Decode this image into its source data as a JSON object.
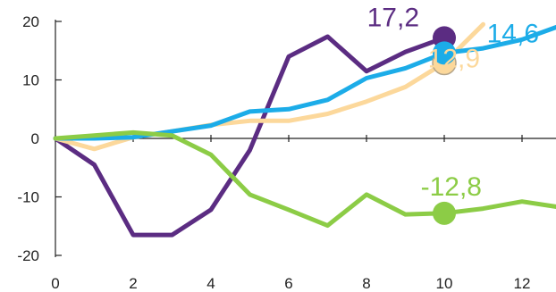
{
  "chart_data": {
    "type": "line",
    "title": "",
    "xlabel": "",
    "ylabel": "",
    "xlim": [
      0,
      13
    ],
    "ylim": [
      -20,
      20
    ],
    "x_ticks": [
      0,
      2,
      4,
      6,
      8,
      10,
      12
    ],
    "y_ticks": [
      -20,
      -10,
      0,
      10,
      20
    ],
    "grid": false,
    "series": [
      {
        "color": "#5b2c82",
        "x": [
          0,
          1,
          2,
          3,
          4,
          5,
          6,
          7,
          8,
          9,
          10
        ],
        "y": [
          0,
          -4.5,
          -16.5,
          -16.5,
          -12.2,
          -2,
          14,
          17.4,
          11.5,
          14.8,
          17.2
        ],
        "end_label": "17,2",
        "end_point": {
          "x": 10,
          "y": 17.2
        }
      },
      {
        "color": "#fcd89b",
        "x": [
          0,
          1,
          2,
          3,
          4,
          5,
          6,
          7,
          8,
          9,
          10,
          11
        ],
        "y": [
          0,
          -1.8,
          0.2,
          1.2,
          2.3,
          3,
          3,
          4.2,
          6.3,
          8.8,
          12.9,
          19.5
        ],
        "end_label": "12,9",
        "end_point": {
          "x": 10,
          "y": 12.9
        }
      },
      {
        "color": "#1cace8",
        "x": [
          0,
          1,
          2,
          3,
          4,
          5,
          6,
          7,
          8,
          9,
          10,
          11,
          12,
          13
        ],
        "y": [
          0,
          0,
          0.2,
          1.2,
          2.2,
          4.6,
          5,
          6.6,
          10.3,
          12,
          14.6,
          15.4,
          16.9,
          19.3
        ],
        "end_label": "14,6",
        "end_point": {
          "x": 10,
          "y": 14.6
        }
      },
      {
        "color": "#8ccc46",
        "x": [
          0,
          1,
          2,
          3,
          4,
          5,
          6,
          7,
          8,
          9,
          10,
          11,
          12,
          13
        ],
        "y": [
          0,
          0.5,
          1,
          0.5,
          -2.8,
          -9.6,
          -12.2,
          -14.9,
          -9.6,
          -13,
          -12.8,
          -12,
          -10.8,
          -11.8
        ],
        "end_label": "-12,8",
        "end_point": {
          "x": 10,
          "y": -12.8
        }
      }
    ]
  }
}
